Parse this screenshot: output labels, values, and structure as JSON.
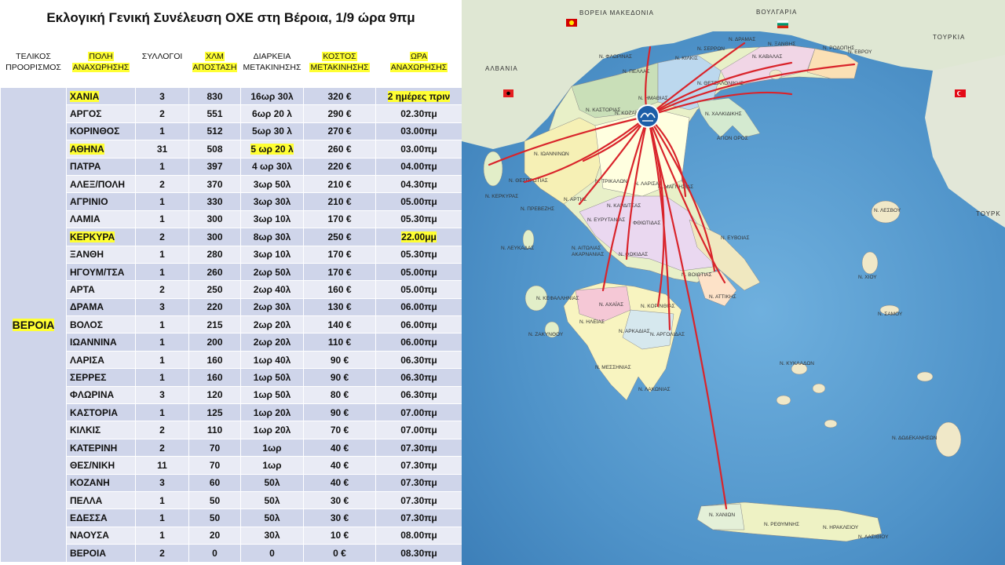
{
  "title": "Εκλογική Γενική Συνέλευση ΟΧΕ στη Βέροια, 1/9 ώρα 9πμ",
  "headers": {
    "dest": [
      "ΤΕΛΙΚΟΣ",
      "ΠΡΟΟΡΙΣΜΟΣ"
    ],
    "city": [
      "ΠΟΛΗ",
      "ΑΝΑΧΩΡΗΣΗΣ"
    ],
    "clubs": "ΣΥΛΛΟΓΟΙ",
    "km": [
      "ΧΛΜ",
      "ΑΠΟΣΤΑΣΗ"
    ],
    "duration": [
      "ΔΙΑΡΚΕΙΑ",
      "ΜΕΤΑΚΙΝΗΣΗΣ"
    ],
    "cost": [
      "ΚΟΣΤΟΣ",
      "ΜΕΤΑΚΙΝΗΣΗΣ"
    ],
    "time": [
      "ΩΡΑ",
      "ΑΝΑΧΩΡΗΣΗΣ"
    ]
  },
  "highlight_color": "#ffff33",
  "destination": "ΒΕΡΟΙΑ",
  "rows": [
    {
      "city": "ΧΑΝΙΑ",
      "clubs": "3",
      "km": "830",
      "duration": "16ωρ 30λ",
      "cost": "320 €",
      "time": "2 ημέρες πριν",
      "hl_city": true,
      "hl_time": true
    },
    {
      "city": "ΑΡΓΟΣ",
      "clubs": "2",
      "km": "551",
      "duration": "6ωρ 20 λ",
      "cost": "290 €",
      "time": "02.30πμ"
    },
    {
      "city": "ΚΟΡΙΝΘΟΣ",
      "clubs": "1",
      "km": "512",
      "duration": "5ωρ 30 λ",
      "cost": "270 €",
      "time": "03.00πμ"
    },
    {
      "city": "ΑΘΗΝΑ",
      "clubs": "31",
      "km": "508",
      "duration": "5 ωρ 20 λ",
      "cost": "260 €",
      "time": "03.00πμ",
      "hl_city": true,
      "hl_duration": true
    },
    {
      "city": "ΠΑΤΡΑ",
      "clubs": "1",
      "km": "397",
      "duration": "4 ωρ 30λ",
      "cost": "220 €",
      "time": "04.00πμ"
    },
    {
      "city": "ΑΛΕΞ/ΠΟΛΗ",
      "clubs": "2",
      "km": "370",
      "duration": "3ωρ 50λ",
      "cost": "210 €",
      "time": "04.30πμ"
    },
    {
      "city": "ΑΓΡΙΝΙΟ",
      "clubs": "1",
      "km": "330",
      "duration": "3ωρ 30λ",
      "cost": "210 €",
      "time": "05.00πμ"
    },
    {
      "city": "ΛΑΜΙΑ",
      "clubs": "1",
      "km": "300",
      "duration": "3ωρ 10λ",
      "cost": "170 €",
      "time": "05.30πμ"
    },
    {
      "city": "ΚΕΡΚΥΡΑ",
      "clubs": "2",
      "km": "300",
      "duration": "8ωρ 30λ",
      "cost": "250 €",
      "time": "22.00μμ",
      "hl_city": true,
      "hl_time": true
    },
    {
      "city": "ΞΑΝΘΗ",
      "clubs": "1",
      "km": "280",
      "duration": "3ωρ 10λ",
      "cost": "170 €",
      "time": "05.30πμ"
    },
    {
      "city": "ΗΓΟΥΜ/ΤΣΑ",
      "clubs": "1",
      "km": "260",
      "duration": "2ωρ 50λ",
      "cost": "170 €",
      "time": "05.00πμ"
    },
    {
      "city": "ΑΡΤΑ",
      "clubs": "2",
      "km": "250",
      "duration": "2ωρ 40λ",
      "cost": "160 €",
      "time": "05.00πμ"
    },
    {
      "city": "ΔΡΑΜΑ",
      "clubs": "3",
      "km": "220",
      "duration": "2ωρ 30λ",
      "cost": "130 €",
      "time": "06.00πμ"
    },
    {
      "city": "ΒΟΛΟΣ",
      "clubs": "1",
      "km": "215",
      "duration": "2ωρ 20λ",
      "cost": "140 €",
      "time": "06.00πμ"
    },
    {
      "city": "ΙΩΑΝΝΙΝΑ",
      "clubs": "1",
      "km": "200",
      "duration": "2ωρ 20λ",
      "cost": "110 €",
      "time": "06.00πμ"
    },
    {
      "city": "ΛΑΡΙΣΑ",
      "clubs": "1",
      "km": "160",
      "duration": "1ωρ 40λ",
      "cost": "90 €",
      "time": "06.30πμ"
    },
    {
      "city": "ΣΕΡΡΕΣ",
      "clubs": "1",
      "km": "160",
      "duration": "1ωρ 50λ",
      "cost": "90 €",
      "time": "06.30πμ"
    },
    {
      "city": "ΦΛΩΡΙΝΑ",
      "clubs": "3",
      "km": "120",
      "duration": "1ωρ 50λ",
      "cost": "80 €",
      "time": "06.30πμ"
    },
    {
      "city": "ΚΑΣΤΟΡΙΑ",
      "clubs": "1",
      "km": "125",
      "duration": "1ωρ 20λ",
      "cost": "90 €",
      "time": "07.00πμ"
    },
    {
      "city": "ΚΙΛΚΙΣ",
      "clubs": "2",
      "km": "110",
      "duration": "1ωρ 20λ",
      "cost": "70 €",
      "time": "07.00πμ"
    },
    {
      "city": "ΚΑΤΕΡΙΝΗ",
      "clubs": "2",
      "km": "70",
      "duration": "1ωρ",
      "cost": "40 €",
      "time": "07.30πμ"
    },
    {
      "city": "ΘΕΣ/ΝΙΚΗ",
      "clubs": "11",
      "km": "70",
      "duration": "1ωρ",
      "cost": "40 €",
      "time": "07.30πμ"
    },
    {
      "city": "ΚΟΖΑΝΗ",
      "clubs": "3",
      "km": "60",
      "duration": "50λ",
      "cost": "40 €",
      "time": "07.30πμ"
    },
    {
      "city": "ΠΕΛΛΑ",
      "clubs": "1",
      "km": "50",
      "duration": "50λ",
      "cost": "30 €",
      "time": "07.30πμ"
    },
    {
      "city": "ΕΔΕΣΣΑ",
      "clubs": "1",
      "km": "50",
      "duration": "50λ",
      "cost": "30 €",
      "time": "07.30πμ"
    },
    {
      "city": "ΝΑΟΥΣΑ",
      "clubs": "1",
      "km": "20",
      "duration": "30λ",
      "cost": "10 €",
      "time": "08.00πμ"
    },
    {
      "city": "ΒΕΡΟΙΑ",
      "clubs": "2",
      "km": "0",
      "duration": "0",
      "cost": "0 €",
      "time": "08.30πμ"
    }
  ],
  "map": {
    "route_color": "#d9242b",
    "sea_color": "#4f93c9",
    "country_labels": [
      "ΒΟΡΕΙΑ ΜΑΚΕΔΟΝΙΑ",
      "ΒΟΥΛΓΑΡΙΑ",
      "ΑΛΒΑΝΙΑ",
      "ΤΟΥΡΚΙΑ",
      "ΤΟΥΡΚ"
    ],
    "prefecture_labels": [
      "Ν. ΔΡΑΜΑΣ",
      "Ν. ΣΕΡΡΩΝ",
      "Ν. ΞΑΝΘΗΣ",
      "Ν. ΡΟΔΟΠΗΣ",
      "Ν. ΕΒΡΟΥ",
      "Ν. ΚΑΒΑΛΑΣ",
      "Ν. ΚΙΛΚΙΣ",
      "Ν. ΦΛΩΡΙΝΑΣ",
      "Ν. ΠΕΛΛΑΣ",
      "Ν. ΘΕΣΣΑΛΟΝΙΚΗΣ",
      "Ν. ΗΜΑΘΙΑΣ",
      "Ν. ΚΑΣΤΟΡΙΑΣ",
      "Ν. ΚΟΖΑΝΗΣ",
      "Ν. ΧΑΛΚΙΔΙΚΗΣ",
      "ΑΓΙΟΝ ΟΡΟΣ",
      "Ν. ΙΩΑΝΝΙΝΩΝ",
      "Ν. ΘΕΣΠΡΩΤΙΑΣ",
      "Ν. ΚΕΡΚΥΡΑΣ",
      "Ν. ΠΡΕΒΕΖΗΣ",
      "Ν. ΑΡΤΗΣ",
      "Ν. ΤΡΙΚΑΛΩΝ",
      "Ν. ΛΑΡΙΣΑΣ",
      "Ν. ΜΑΓΝΗΣΙΑΣ",
      "Ν. ΚΑΡΔΙΤΣΑΣ",
      "Ν. ΕΥΡΥΤΑΝΙΑΣ",
      "ΦΘΙΩΤΙΔΑΣ",
      "Ν. ΛΕΥΚΑΔΑΣ",
      "Ν. ΑΙΤΩΛΙΑΣ",
      "ΑΚΑΡΝΑΝΙΑΣ",
      "Ν. ΦΩΚΙΔΑΣ",
      "Ν. ΕΥΒΟΙΑΣ",
      "Ν. ΒΟΙΩΤΙΑΣ",
      "Ν. ΚΕΦΑΛΛΗΝΙΑΣ",
      "Ν. ΑΧΑΪΑΣ",
      "Ν. ΚΟΡΙΝΘΙΑΣ",
      "Ν. ΑΤΤΙΚΗΣ",
      "Ν. ΗΛΕΙΑΣ",
      "Ν. ΑΡΚΑΔΙΑΣ",
      "Ν. ΑΡΓΟΛΙΔΑΣ",
      "Ν. ΖΑΚΥΝΘΟΥ",
      "Ν. ΜΕΣΣΗΝΙΑΣ",
      "Ν. ΛΑΚΩΝΙΑΣ",
      "Ν. ΛΕΣΒΟΥ",
      "Ν. ΧΙΟΥ",
      "Ν. ΣΑΜΟΥ",
      "Ν. ΚΥΚΛΑΔΩΝ",
      "Ν. ΔΩΔΕΚΑΝΗΣΩΝ",
      "Ν. ΧΑΝΙΩΝ",
      "Ν. ΡΕΘΥΜΝΗΣ",
      "Ν. ΗΡΑΚΛΕΙΟΥ",
      "Ν. ΛΑΣΙΘΙΟΥ"
    ]
  }
}
